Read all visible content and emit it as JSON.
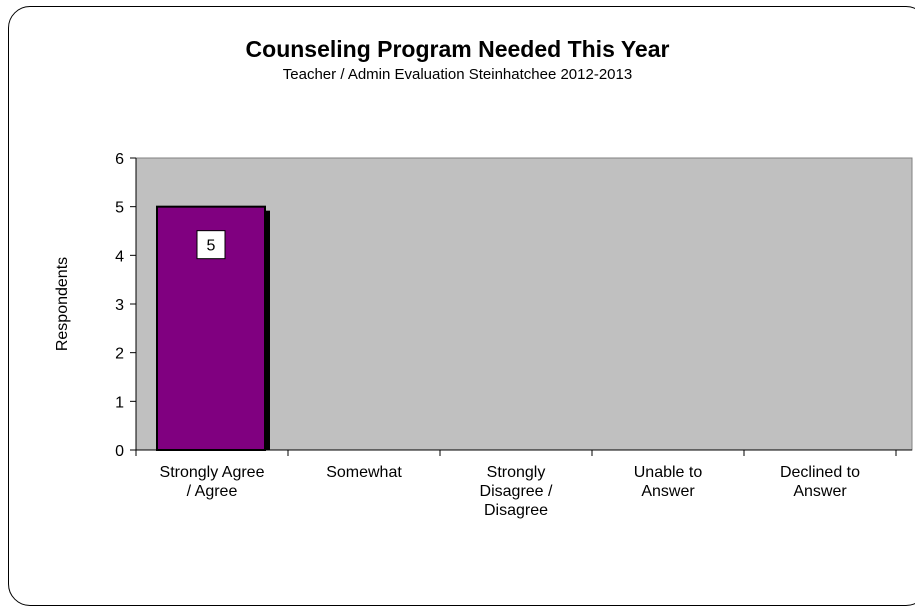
{
  "chart_data": {
    "type": "bar",
    "title": "Counseling Program Needed This Year",
    "subtitle": "Teacher / Admin Evaluation Steinhatchee 2012-2013",
    "ylabel": "Respondents",
    "xlabel": "",
    "ylim": [
      0,
      6
    ],
    "yticks": [
      "0",
      "1",
      "2",
      "3",
      "4",
      "5",
      "6"
    ],
    "categories": [
      [
        "Strongly Agree",
        "/ Agree"
      ],
      [
        "Somewhat"
      ],
      [
        "Strongly",
        "Disagree /",
        "Disagree"
      ],
      [
        "Unable to",
        "Answer"
      ],
      [
        "Declined to",
        "Answer"
      ]
    ],
    "values": [
      5,
      0,
      0,
      0,
      0
    ],
    "data_labels": [
      "5",
      "",
      "",
      "",
      ""
    ],
    "bar_color": "#800080",
    "plot_background": "#c0c0c0",
    "grid": false,
    "legend": "none"
  }
}
